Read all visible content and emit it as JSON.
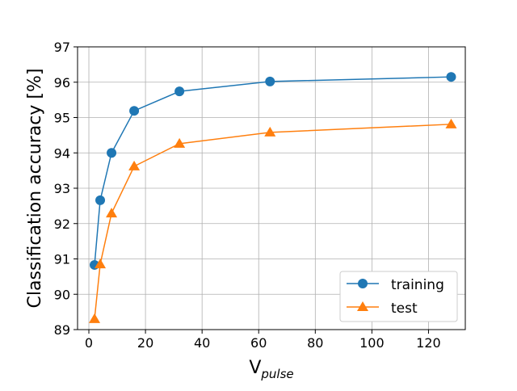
{
  "chart_data": {
    "type": "line",
    "title": "",
    "xlabel_main": "V",
    "xlabel_sub": "pulse",
    "ylabel": "Classification accuracy [%]",
    "xlim": [
      -4,
      133
    ],
    "ylim": [
      89,
      97
    ],
    "xticks": [
      0,
      20,
      40,
      60,
      80,
      100,
      120
    ],
    "yticks": [
      89,
      90,
      91,
      92,
      93,
      94,
      95,
      96,
      97
    ],
    "grid": true,
    "legend_position": "lower-right",
    "x": [
      2,
      4,
      8,
      16,
      32,
      64,
      128
    ],
    "series": [
      {
        "name": "training",
        "color": "#1f77b4",
        "marker": "circle",
        "values": [
          90.83,
          92.66,
          94.0,
          95.19,
          95.74,
          96.02,
          96.15
        ]
      },
      {
        "name": "test",
        "color": "#ff7f0e",
        "marker": "triangle",
        "values": [
          89.3,
          90.85,
          92.29,
          93.62,
          94.26,
          94.58,
          94.81
        ]
      }
    ]
  }
}
